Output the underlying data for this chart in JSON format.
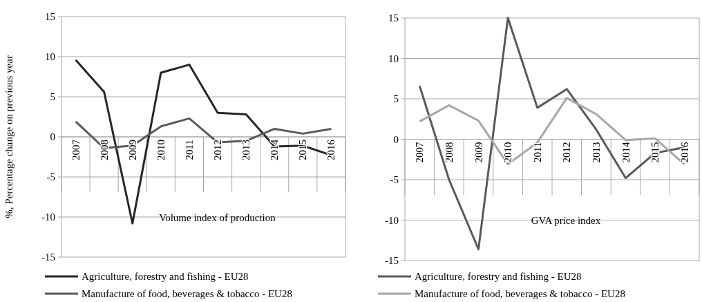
{
  "chart_data": [
    {
      "type": "line",
      "ylabel": "%, Percentage change on previous year",
      "annotations": [
        "Volume index of production"
      ],
      "categories": [
        "2007",
        "2008",
        "2009",
        "2010",
        "2011",
        "2012",
        "2013",
        "2014",
        "2015",
        "2016"
      ],
      "series": [
        {
          "name": "Agriculture, forestry and fishing - EU28",
          "color": "#262626",
          "values": [
            9.6,
            5.6,
            -10.8,
            8.0,
            9.0,
            3.0,
            2.8,
            -1.2,
            -1.1,
            -2.3
          ]
        },
        {
          "name": "Manufacture of food, beverages & tobacco - EU28",
          "color": "#595959",
          "values": [
            1.9,
            -1.4,
            -1.1,
            1.3,
            2.3,
            -0.7,
            -0.5,
            1.0,
            0.4,
            1.0
          ]
        }
      ],
      "ylim": [
        -15,
        15
      ],
      "yticks": [
        -15,
        -10,
        -5,
        0,
        5,
        10,
        15
      ],
      "grid": "y",
      "legend": "bottom"
    },
    {
      "type": "line",
      "annotations": [
        "GVA price index"
      ],
      "categories": [
        "2007",
        "2008",
        "2009",
        "2010",
        "2011",
        "2012",
        "2013",
        "2014",
        "2015",
        "2016"
      ],
      "series": [
        {
          "name": "Agriculture, forestry and fishing - EU28",
          "color": "#595959",
          "values": [
            6.6,
            -5.0,
            -13.6,
            15.0,
            3.9,
            6.2,
            1.2,
            -4.8,
            -1.7,
            -1.0
          ]
        },
        {
          "name": "Manufacture of food, beverages & tobacco - EU28",
          "color": "#a6a6a6",
          "values": [
            2.2,
            4.2,
            2.3,
            -3.1,
            -0.4,
            5.1,
            3.1,
            -0.1,
            0.1,
            -3.1
          ]
        }
      ],
      "ylim": [
        -15,
        15
      ],
      "yticks": [
        -15,
        -10,
        -5,
        0,
        5,
        10,
        15
      ],
      "grid": "y",
      "legend": "bottom"
    }
  ]
}
